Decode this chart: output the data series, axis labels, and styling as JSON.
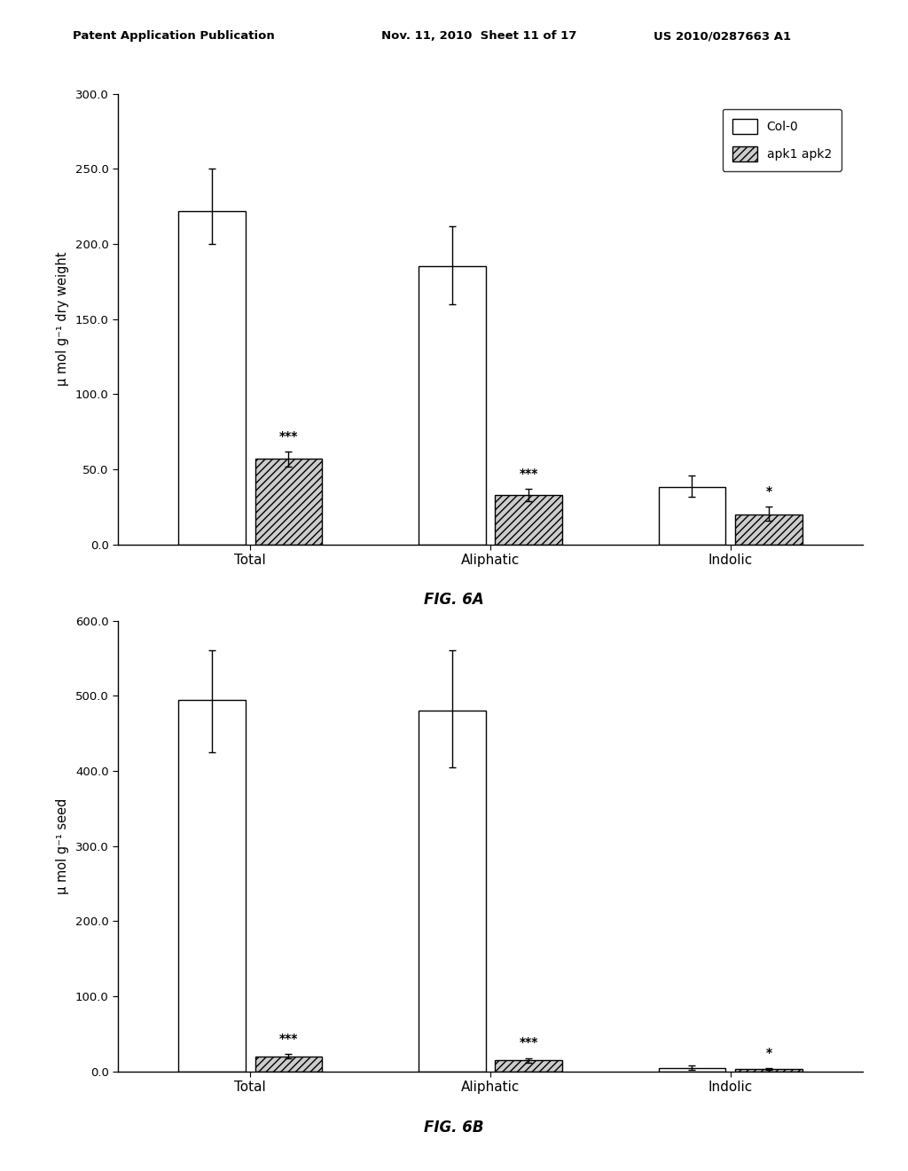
{
  "fig6a": {
    "title": "FIG. 6A",
    "ylabel": "μ mol g⁻¹ dry weight",
    "ylim": [
      0,
      300
    ],
    "yticks": [
      0.0,
      50.0,
      100.0,
      150.0,
      200.0,
      250.0,
      300.0
    ],
    "categories": [
      "Total",
      "Aliphatic",
      "Indolic"
    ],
    "col0_values": [
      222.0,
      185.0,
      38.0
    ],
    "apk_values": [
      57.0,
      33.0,
      20.0
    ],
    "col0_errors_upper": [
      28.0,
      27.0,
      8.0
    ],
    "col0_errors_lower": [
      22.0,
      25.0,
      6.0
    ],
    "apk_errors_upper": [
      5.0,
      4.0,
      5.0
    ],
    "apk_errors_lower": [
      5.0,
      4.0,
      4.0
    ],
    "significance": [
      "***",
      "***",
      "*"
    ]
  },
  "fig6b": {
    "title": "FIG. 6B",
    "ylabel": "μ mol g⁻¹ seed",
    "ylim": [
      0,
      600
    ],
    "yticks": [
      0.0,
      100.0,
      200.0,
      300.0,
      400.0,
      500.0,
      600.0
    ],
    "categories": [
      "Total",
      "Aliphatic",
      "Indolic"
    ],
    "col0_values": [
      495.0,
      480.0,
      5.0
    ],
    "apk_values": [
      20.0,
      15.0,
      3.0
    ],
    "col0_errors_upper": [
      65.0,
      80.0,
      3.0
    ],
    "col0_errors_lower": [
      70.0,
      75.0,
      3.0
    ],
    "apk_errors_upper": [
      3.0,
      3.0,
      1.0
    ],
    "apk_errors_lower": [
      3.0,
      3.0,
      1.0
    ],
    "significance": [
      "***",
      "***",
      "*"
    ]
  },
  "legend": {
    "col0_label": "Col-0",
    "apk_label": "apk1 apk2"
  },
  "header_left": "Patent Application Publication",
  "header_mid": "Nov. 11, 2010  Sheet 11 of 17",
  "header_right": "US 2010/0287663 A1",
  "bar_width": 0.28,
  "bar_gap": 0.04,
  "col0_color": "#ffffff",
  "apk_color": "#cccccc",
  "edge_color": "#000000",
  "hatch_pattern": "////"
}
